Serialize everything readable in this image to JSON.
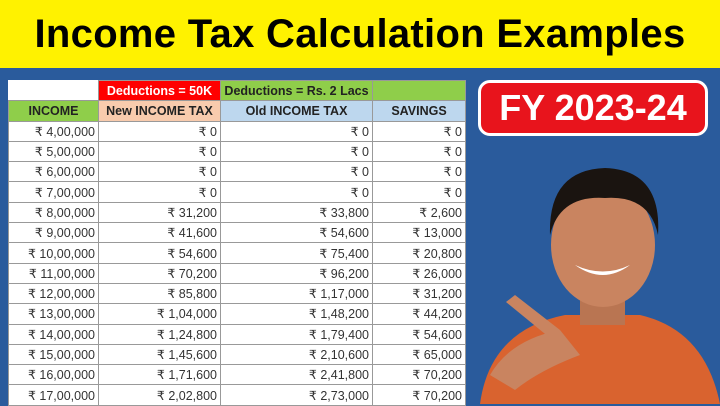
{
  "title": "Income Tax Calculation Examples",
  "badge": "FY 2023-24",
  "table": {
    "group_headers": [
      "",
      "Deductions = 50K",
      "Deductions = Rs. 2 Lacs",
      ""
    ],
    "headers": [
      "INCOME",
      "New INCOME TAX",
      "Old INCOME TAX",
      "SAVINGS"
    ],
    "rows": [
      [
        "₹ 4,00,000",
        "₹ 0",
        "₹ 0",
        "₹ 0"
      ],
      [
        "₹ 5,00,000",
        "₹ 0",
        "₹ 0",
        "₹ 0"
      ],
      [
        "₹ 6,00,000",
        "₹ 0",
        "₹ 0",
        "₹ 0"
      ],
      [
        "₹ 7,00,000",
        "₹ 0",
        "₹ 0",
        "₹ 0"
      ],
      [
        "₹ 8,00,000",
        "₹ 31,200",
        "₹ 33,800",
        "₹ 2,600"
      ],
      [
        "₹ 9,00,000",
        "₹ 41,600",
        "₹ 54,600",
        "₹ 13,000"
      ],
      [
        "₹ 10,00,000",
        "₹ 54,600",
        "₹ 75,400",
        "₹ 20,800"
      ],
      [
        "₹ 11,00,000",
        "₹ 70,200",
        "₹ 96,200",
        "₹ 26,000"
      ],
      [
        "₹ 12,00,000",
        "₹ 85,800",
        "₹ 1,17,000",
        "₹ 31,200"
      ],
      [
        "₹ 13,00,000",
        "₹ 1,04,000",
        "₹ 1,48,200",
        "₹ 44,200"
      ],
      [
        "₹ 14,00,000",
        "₹ 1,24,800",
        "₹ 1,79,400",
        "₹ 54,600"
      ],
      [
        "₹ 15,00,000",
        "₹ 1,45,600",
        "₹ 2,10,600",
        "₹ 65,000"
      ],
      [
        "₹ 16,00,000",
        "₹ 1,71,600",
        "₹ 2,41,800",
        "₹ 70,200"
      ],
      [
        "₹ 17,00,000",
        "₹ 2,02,800",
        "₹ 2,73,000",
        "₹ 70,200"
      ]
    ]
  },
  "colors": {
    "title_bg": "#fff200",
    "background": "#2a5b9c",
    "badge": "#e8141c"
  }
}
